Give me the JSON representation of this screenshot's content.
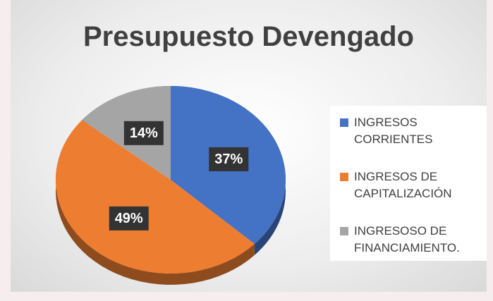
{
  "chart_data": {
    "type": "pie",
    "title": "Presupuesto Devengado",
    "categories": [
      "INGRESOS CORRIENTES",
      "INGRESOS DE CAPITALIZACIÓN",
      "INGRESOSO DE FINANCIAMIENTO."
    ],
    "values": [
      37,
      49,
      14
    ],
    "value_labels": [
      "37%",
      "49%",
      "14%"
    ],
    "colors": [
      "#4472c4",
      "#ed7d31",
      "#a5a5a5"
    ],
    "legend": "right"
  }
}
